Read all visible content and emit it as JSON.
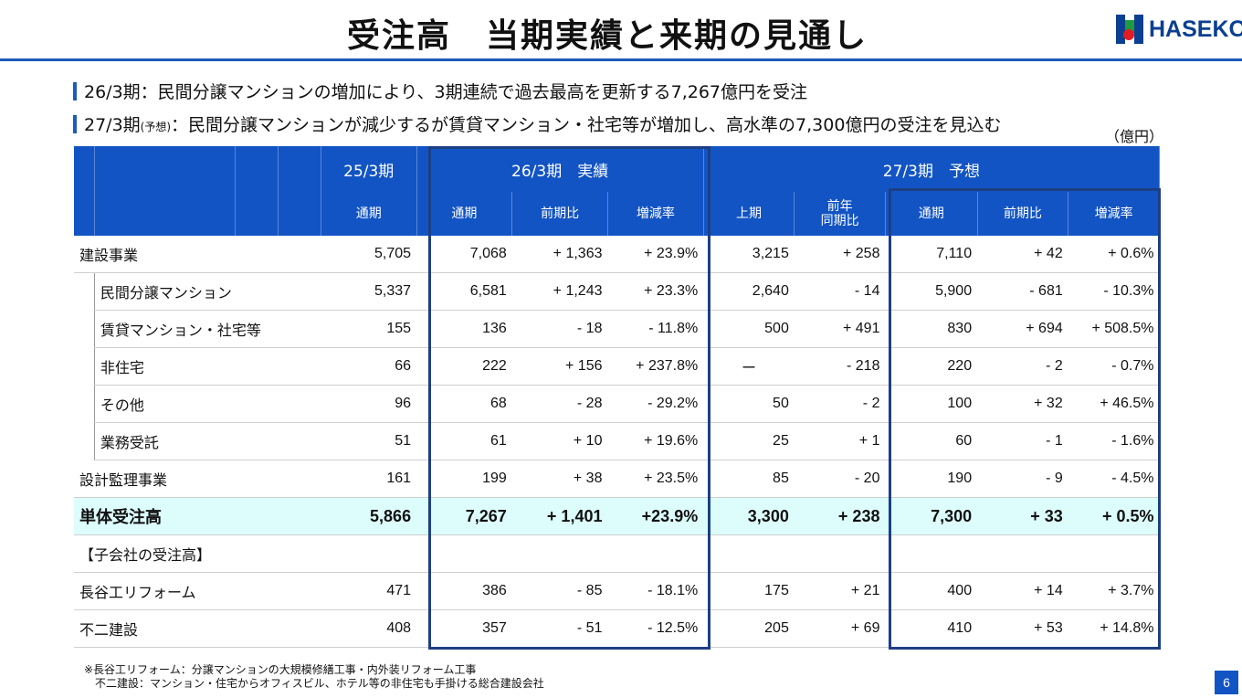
{
  "title": "受注高　当期実績と来期の見通し",
  "logo": {
    "text": "HASEKO",
    "colors": {
      "blue": "#0b3f91",
      "green": "#1f9b3d",
      "red": "#e31b23"
    }
  },
  "headlines": {
    "line1": "26/3期：民間分譲マンションの増加により、3期連続で過去最高を更新する7,267億円を受注",
    "line2_a": "27/3期",
    "line2_small": "(予想)",
    "line2_b": "：民間分譲マンションが減少するが賃貸マンション・社宅等が増加し、高水準の7,300億円の受注を見込む"
  },
  "unit": "（億円）",
  "table": {
    "group_headers": [
      "25/3期",
      "26/3期　実績",
      "27/3期　予想"
    ],
    "sub_headers": [
      "通期",
      "通期",
      "前期比",
      "増減率",
      "上期",
      "前年\n同期比",
      "通期",
      "前期比",
      "増減率"
    ],
    "rows": [
      {
        "label": "建設事業",
        "values": [
          "5,705",
          "7,068",
          "+ 1,363",
          "+ 23.9%",
          "3,215",
          "+ 258",
          "7,110",
          "+ 42",
          "+ 0.6%"
        ]
      },
      {
        "label": "民間分譲マンション",
        "values": [
          "5,337",
          "6,581",
          "+ 1,243",
          "+ 23.3%",
          "2,640",
          "- 14",
          "5,900",
          "- 681",
          "- 10.3%"
        ]
      },
      {
        "label": "賃貸マンション・社宅等",
        "values": [
          "155",
          "136",
          "- 18",
          "- 11.8%",
          "500",
          "+ 491",
          "830",
          "+ 694",
          "+ 508.5%"
        ]
      },
      {
        "label": "非住宅",
        "values": [
          "66",
          "222",
          "+ 156",
          "+ 237.8%",
          "ー",
          "- 218",
          "220",
          "-  2",
          "- 0.7%"
        ]
      },
      {
        "label": "その他",
        "values": [
          "96",
          "68",
          "- 28",
          "- 29.2%",
          "50",
          "- 2",
          "100",
          "+ 32",
          "+ 46.5%"
        ]
      },
      {
        "label": "業務受託",
        "values": [
          "51",
          "61",
          "+ 10",
          "+ 19.6%",
          "25",
          "+ 1",
          "60",
          "- 1",
          "- 1.6%"
        ]
      },
      {
        "label": "設計監理事業",
        "values": [
          "161",
          "199",
          "+ 38",
          "+ 23.5%",
          "85",
          "- 20",
          "190",
          "- 9",
          "- 4.5%"
        ]
      },
      {
        "label": "単体受注高",
        "values": [
          "5,866",
          "7,267",
          "+ 1,401",
          "+23.9%",
          "3,300",
          "+ 238",
          "7,300",
          "+ 33",
          "+ 0.5%"
        ]
      },
      {
        "label": "【子会社の受注高】",
        "values": [
          "",
          "",
          "",
          "",
          "",
          "",
          "",
          "",
          ""
        ]
      },
      {
        "label": "長谷工リフォーム",
        "values": [
          "471",
          "386",
          "- 85",
          "- 18.1%",
          "175",
          "+ 21",
          "400",
          "+ 14",
          "+ 3.7%"
        ]
      },
      {
        "label": "不二建設",
        "values": [
          "408",
          "357",
          "- 51",
          "- 12.5%",
          "205",
          "+ 69",
          "410",
          "+ 53",
          "+ 14.8%"
        ]
      }
    ]
  },
  "notes": [
    "※長谷工リフォーム：分譲マンションの大規模修繕工事・内外装リフォーム工事",
    "　不二建設：マンション・住宅からオフィスビル、ホテル等の非住宅も手掛ける総合建設会社"
  ],
  "page_number": "6",
  "colors": {
    "header_bg": "#1254c4",
    "accent": "#1c5bb8",
    "total_row_bg": "#ddfdfd",
    "frame": "#1d3f83"
  }
}
